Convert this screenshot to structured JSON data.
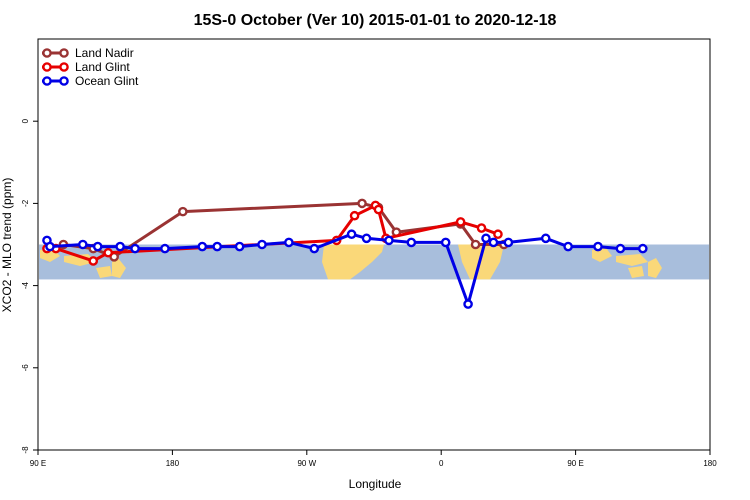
{
  "chart_data": {
    "type": "line",
    "title": "15S-0 October (Ver 10)   2015-01-01 to 2020-12-18",
    "xlabel": "Longitude",
    "ylabel": "XCO2 - MLO trend (ppm)",
    "xlim": [
      90,
      450
    ],
    "ylim": [
      -8,
      2
    ],
    "x_ticks": [
      {
        "value": 90,
        "label": "90 E"
      },
      {
        "value": 180,
        "label": "180"
      },
      {
        "value": 270,
        "label": "90 W"
      },
      {
        "value": 360,
        "label": "0"
      },
      {
        "value": 450,
        "label": "90 E"
      },
      {
        "value": 540,
        "label": "180"
      }
    ],
    "y_ticks": [
      {
        "value": 0,
        "label": "0"
      },
      {
        "value": -2,
        "label": "-2"
      },
      {
        "value": -4,
        "label": "-4"
      },
      {
        "value": -6,
        "label": "-6"
      },
      {
        "value": -8,
        "label": "-8"
      }
    ],
    "x_axis_max": 540,
    "legend_position": "top-left",
    "background_band": {
      "y_range": [
        -3.85,
        -3.0
      ],
      "ocean_color": "#a8bedc",
      "land_color": "#fad879"
    },
    "series": [
      {
        "name": "Land Nadir",
        "color": "#9a3333",
        "x": [
          107,
          127,
          141,
          187,
          307,
          318,
          330,
          373,
          383,
          402
        ],
        "y": [
          -3.0,
          -3.1,
          -3.3,
          -2.2,
          -2.0,
          -2.1,
          -2.7,
          -2.5,
          -3.0,
          -3.0
        ]
      },
      {
        "name": "Land Glint",
        "color": "#e60000",
        "x": [
          96,
          102,
          127,
          137,
          290,
          302,
          316,
          318,
          323,
          373,
          387,
          398
        ],
        "y": [
          -3.1,
          -3.1,
          -3.4,
          -3.2,
          -2.9,
          -2.3,
          -2.05,
          -2.15,
          -2.85,
          -2.45,
          -2.6,
          -2.75
        ]
      },
      {
        "name": "Ocean Glint",
        "color": "#0000e6",
        "x": [
          96,
          98,
          120,
          130,
          145,
          155,
          175,
          200,
          210,
          225,
          240,
          258,
          275,
          300,
          310,
          325,
          340,
          363,
          378,
          390,
          395,
          405,
          430,
          445,
          465,
          480,
          495
        ],
        "y": [
          -2.9,
          -3.05,
          -3.0,
          -3.05,
          -3.05,
          -3.1,
          -3.1,
          -3.05,
          -3.05,
          -3.05,
          -3.0,
          -2.95,
          -3.1,
          -2.75,
          -2.85,
          -2.9,
          -2.95,
          -2.95,
          -4.45,
          -2.85,
          -2.95,
          -2.95,
          -2.85,
          -3.05,
          -3.05,
          -3.1,
          -3.1
        ]
      }
    ]
  }
}
